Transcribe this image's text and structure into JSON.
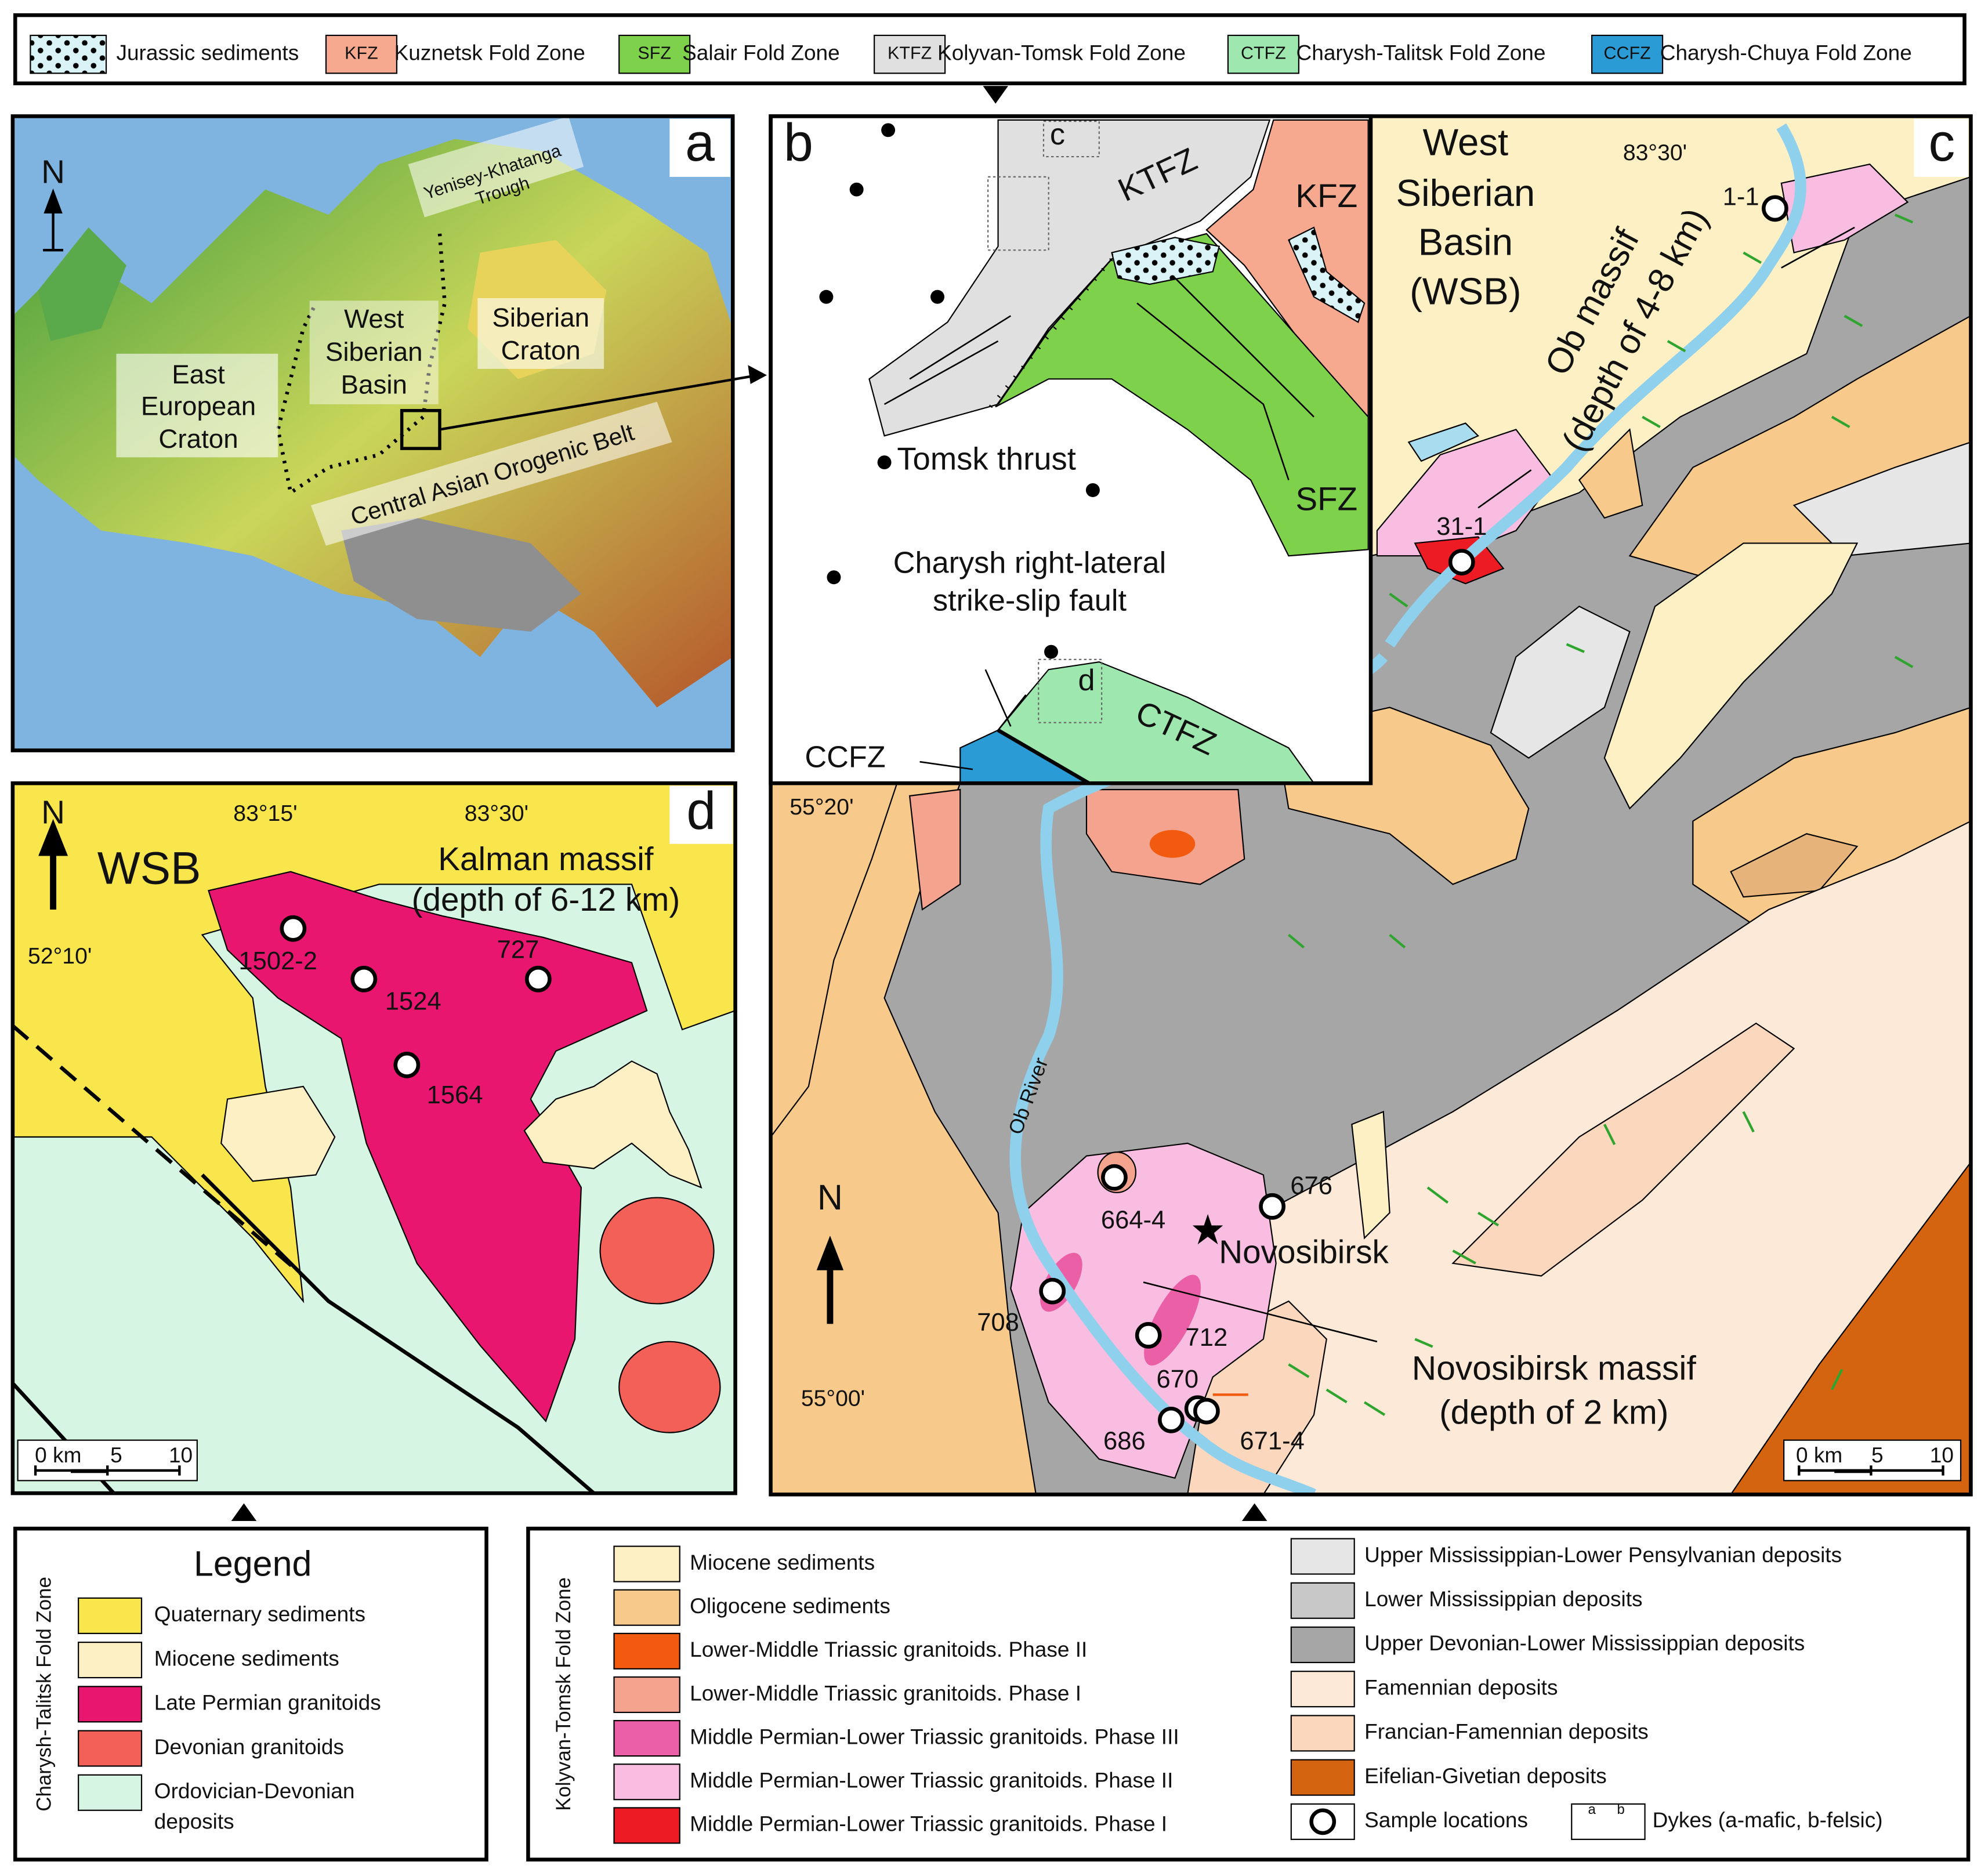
{
  "top_legend": {
    "items": [
      {
        "label": "Jurassic sediments",
        "color": "#d9f3f7"
      },
      {
        "code": "KFZ",
        "label": "Kuznetsk Fold Zone",
        "color": "#f6a98f"
      },
      {
        "code": "SFZ",
        "label": "Salair Fold Zone",
        "color": "#7ed14b"
      },
      {
        "code": "KTFZ",
        "label": "Kolyvan-Tomsk Fold Zone",
        "color": "#e0e0e0"
      },
      {
        "code": "CTFZ",
        "label": "Charysh-Talitsk Fold Zone",
        "color": "#9ee8b0"
      },
      {
        "code": "CCFZ",
        "label": "Charysh-Chuya Fold Zone",
        "color": "#2b9bd6"
      }
    ]
  },
  "panel_a": {
    "letter": "a",
    "north": "N",
    "regions": [
      {
        "lines": [
          "Yenisey-Khatanga",
          "Trough"
        ]
      },
      {
        "lines": [
          "West",
          "Siberian",
          "Basin"
        ]
      },
      {
        "lines": [
          "Siberian",
          "Craton"
        ]
      },
      {
        "lines": [
          "East",
          "European",
          "Craton"
        ]
      },
      {
        "lines": [
          "Central Asian Orogenic Belt"
        ]
      }
    ]
  },
  "panel_b": {
    "letter": "b",
    "inset_c": "c",
    "inset_d": "d",
    "zones": [
      "KTFZ",
      "KFZ",
      "SFZ",
      "CTFZ",
      "CCFZ"
    ],
    "thrust": "Tomsk thrust",
    "fault": [
      "Charysh right-lateral",
      "strike-slip fault"
    ]
  },
  "panel_c": {
    "letter": "c",
    "basin": [
      "West",
      "Siberian",
      "Basin",
      "(WSB)"
    ],
    "longitude": "83°30'",
    "latitudes": [
      "55°20'",
      "55°00'"
    ],
    "river": "Ob River",
    "north": "N",
    "ob_massif": [
      "Ob massif",
      "(depth of 4-8 km)"
    ],
    "city": "Novosibirsk",
    "novosibirsk_massif": [
      "Novosibirsk massif",
      "(depth of 2 km)"
    ],
    "samples": [
      "1-1",
      "31-1",
      "664-4",
      "676",
      "708",
      "712",
      "670",
      "686",
      "671-4"
    ],
    "scale": [
      "0 km",
      "5",
      "10"
    ]
  },
  "panel_d": {
    "letter": "d",
    "north": "N",
    "basin": "WSB",
    "longitudes": [
      "83°15'",
      "83°30'"
    ],
    "latitude": "52°10'",
    "massif": [
      "Kalman massif",
      "(depth of 6-12 km)"
    ],
    "samples": [
      "1502-2",
      "1524",
      "727",
      "1564"
    ],
    "scale": [
      "0 km",
      "5",
      "10"
    ]
  },
  "legend_left": {
    "side_label": "Charysh-Talitsk Fold Zone",
    "title": "Legend",
    "items": [
      {
        "lines": [
          "Quaternary sediments"
        ],
        "color": "#f9e54c"
      },
      {
        "lines": [
          "Miocene sediments"
        ],
        "color": "#fdf0c4"
      },
      {
        "lines": [
          "Late Permian granitoids"
        ],
        "color": "#e8166f"
      },
      {
        "lines": [
          "Devonian granitoids"
        ],
        "color": "#f26058"
      },
      {
        "lines": [
          "Ordovician-Devonian",
          "deposits"
        ],
        "color": "#d6f5e3"
      }
    ]
  },
  "legend_right": {
    "side_label": "Kolyvan-Tomsk Fold Zone",
    "left_items": [
      {
        "label": "Miocene sediments",
        "color": "#fdf0c4"
      },
      {
        "label": "Oligocene sediments",
        "color": "#f7c98a"
      },
      {
        "label": "Lower-Middle Triassic granitoids. Phase II",
        "color": "#f25a0f"
      },
      {
        "label": "Lower-Middle Triassic granitoids. Phase I",
        "color": "#f4a38e"
      },
      {
        "label": "Middle Permian-Lower Triassic granitoids. Phase III",
        "color": "#ea5fa6"
      },
      {
        "label": "Middle Permian-Lower Triassic granitoids. Phase II",
        "color": "#f8bde0"
      },
      {
        "label": "Middle Permian-Lower Triassic granitoids. Phase I",
        "color": "#ed1c24"
      }
    ],
    "right_items": [
      {
        "label": "Upper Mississippian-Lower Pensylvanian deposits",
        "color": "#e6e6e6"
      },
      {
        "label": "Lower Mississippian deposits",
        "color": "#c8c8c8"
      },
      {
        "label": "Upper Devonian-Lower Mississippian deposits",
        "color": "#a6a6a6"
      },
      {
        "label": "Famennian deposits",
        "color": "#fde9d7"
      },
      {
        "label": "Francian-Famennian deposits",
        "color": "#fbd8bd"
      },
      {
        "label": "Eifelian-Givetian deposits",
        "color": "#d4640f"
      }
    ],
    "samples": "Sample locations",
    "dykes": {
      "a": "a",
      "b": "b",
      "label": "Dykes (a-mafic, b-felsic)"
    }
  }
}
